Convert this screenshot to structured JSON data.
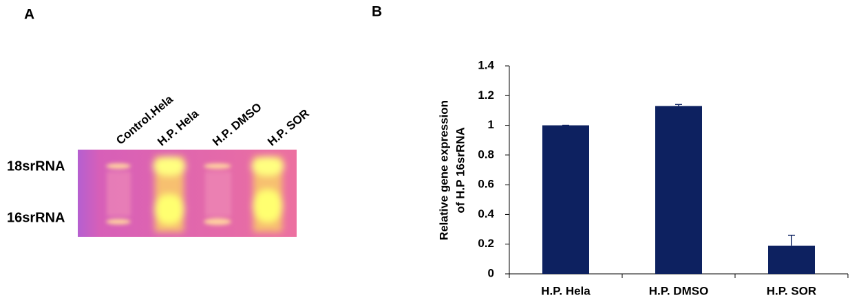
{
  "panel_labels": [
    "A",
    "B"
  ],
  "gel": {
    "lanes": [
      "Control.Hela",
      "H.P. Hela",
      "H.P. DMSO",
      "H.P. SOR"
    ],
    "bands": [
      "18srRNA",
      "16srRNA"
    ]
  },
  "chart_data": {
    "type": "bar",
    "ylabel": [
      "Relative gene expression",
      "of H.P 16srRNA"
    ],
    "categories": [
      "H.P. Hela",
      "H.P. DMSO",
      "H.P. SOR"
    ],
    "values": [
      1,
      1.13,
      0.19
    ],
    "errors": [
      0,
      0.01,
      0.07
    ],
    "color": "#0d2160",
    "ylim": [
      0,
      1.4
    ],
    "yticks": [
      0,
      0.2,
      0.4,
      0.6,
      0.8,
      1,
      1.2,
      1.4
    ],
    "grid": false
  }
}
